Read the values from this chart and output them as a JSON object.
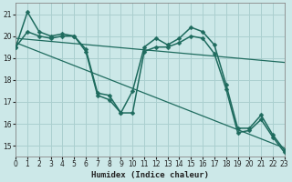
{
  "xlabel": "Humidex (Indice chaleur)",
  "bg_color": "#cce8e8",
  "grid_color": "#aacfcf",
  "line_color": "#1e6b5e",
  "xlim": [
    0,
    23
  ],
  "ylim": [
    14.5,
    21.5
  ],
  "xticks": [
    0,
    1,
    2,
    3,
    4,
    5,
    6,
    7,
    8,
    9,
    10,
    11,
    12,
    13,
    14,
    15,
    16,
    17,
    18,
    19,
    20,
    21,
    22,
    23
  ],
  "yticks": [
    15,
    16,
    17,
    18,
    19,
    20,
    21
  ],
  "series1_x": [
    0,
    1,
    2,
    3,
    4,
    5,
    6,
    7,
    8,
    9,
    10,
    11,
    12,
    13,
    14,
    15,
    16,
    17,
    18,
    19,
    20,
    21,
    22,
    23
  ],
  "series1_y": [
    19.5,
    21.1,
    20.2,
    20.0,
    20.1,
    20.0,
    19.4,
    17.4,
    17.3,
    16.5,
    17.5,
    19.5,
    19.9,
    19.6,
    19.9,
    20.4,
    20.2,
    19.6,
    17.8,
    15.8,
    15.8,
    16.4,
    15.5,
    14.8
  ],
  "series2_x": [
    0,
    1,
    2,
    3,
    4,
    5,
    6,
    7,
    8,
    9,
    10,
    11,
    12,
    13,
    14,
    15,
    16,
    17,
    18,
    19,
    20,
    21,
    22,
    23
  ],
  "series2_y": [
    19.5,
    20.2,
    20.0,
    19.9,
    20.0,
    20.0,
    19.3,
    17.3,
    17.1,
    16.5,
    16.5,
    19.3,
    19.5,
    19.5,
    19.7,
    20.0,
    19.9,
    19.2,
    17.6,
    15.6,
    15.7,
    16.2,
    15.4,
    14.7
  ],
  "trend1_x": [
    0,
    23
  ],
  "trend1_y": [
    19.9,
    18.8
  ],
  "trend2_x": [
    0,
    23
  ],
  "trend2_y": [
    19.7,
    14.9
  ]
}
